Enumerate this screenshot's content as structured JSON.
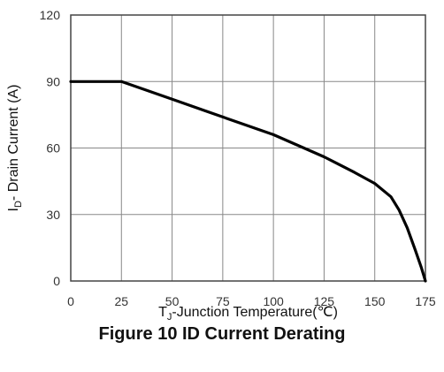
{
  "chart_data": {
    "type": "line",
    "title": "Figure 10 ID Current Derating",
    "xlabel": {
      "main": "T",
      "sub": "J",
      "rest": "-Junction Temperature(℃)"
    },
    "ylabel": {
      "main": "I",
      "sub": "D",
      "rest": "- Drain Current (A)"
    },
    "xlim": [
      0,
      175
    ],
    "ylim": [
      0,
      120
    ],
    "xticks": [
      "0",
      "25",
      "50",
      "75",
      "100",
      "125",
      "150",
      "175"
    ],
    "yticks": [
      "0",
      "30",
      "60",
      "90",
      "120"
    ],
    "grid": true,
    "series": [
      {
        "x": [
          0,
          25,
          50,
          75,
          100,
          125,
          140,
          150,
          158,
          162,
          166,
          170,
          173,
          175
        ],
        "y": [
          90,
          90,
          82,
          74,
          66,
          56,
          49,
          44,
          38,
          32,
          24,
          14,
          6,
          0
        ]
      }
    ]
  }
}
